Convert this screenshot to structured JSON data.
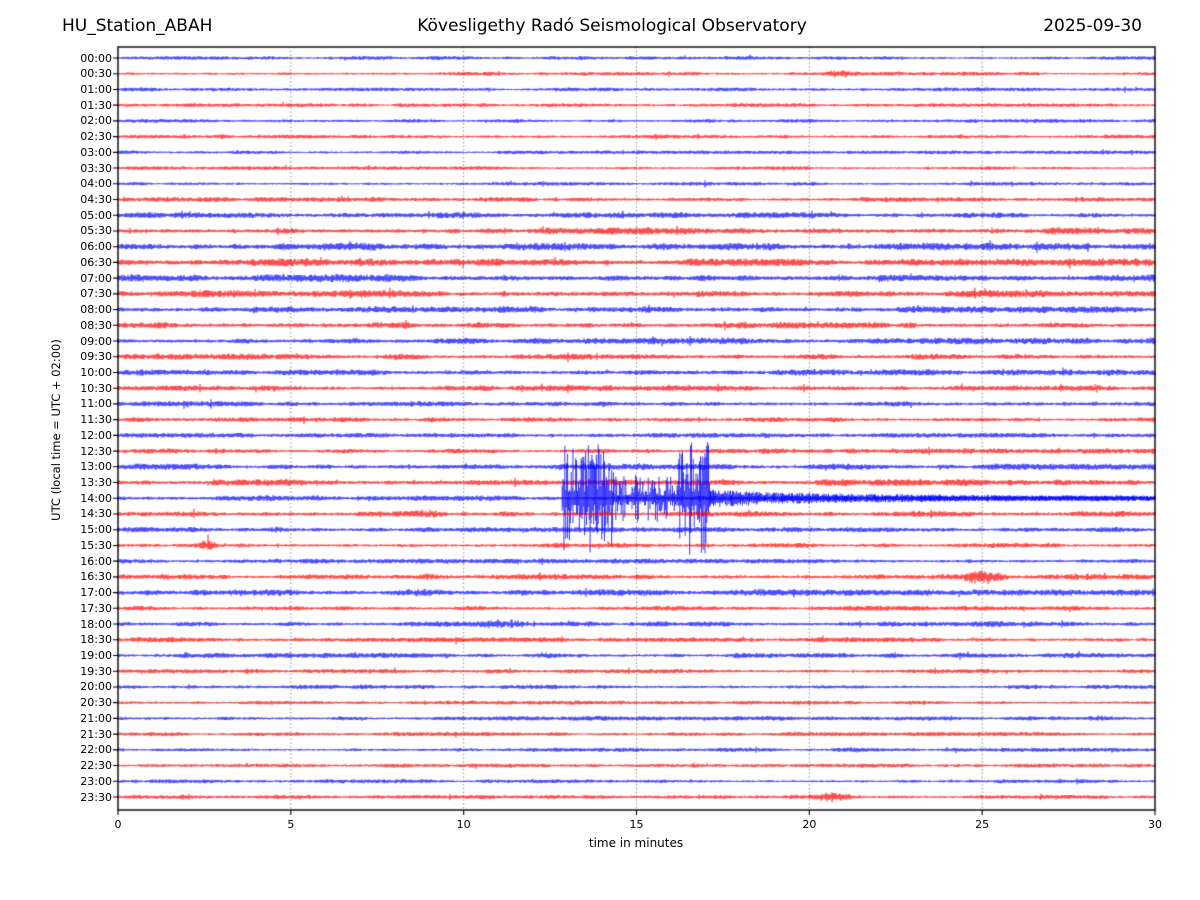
{
  "colors": {
    "background": "#ffffff",
    "trace_blue": "#0000ff",
    "trace_red": "#ff0000",
    "grid": "#3a3a3a",
    "axis": "#000000",
    "text": "#000000"
  },
  "chart_data": {
    "type": "line",
    "subtype": "helicorder-day-plot",
    "title_left": "HU_Station_ABAH",
    "title_center": "Kövesligethy Radó Seismological Observatory",
    "title_right": "2025-09-30",
    "xlabel": "time in minutes",
    "ylabel": "UTC (local time = UTC + 02:00)",
    "x_range": [
      0,
      30
    ],
    "x_ticks": [
      0,
      5,
      10,
      15,
      20,
      25,
      30
    ],
    "grid_minutes": [
      5,
      10,
      15,
      20,
      25
    ],
    "minutes_per_row": 30,
    "grid": "vertical-dotted",
    "event": {
      "row": "14:00",
      "start_minute": 12.85,
      "strong_until_minute": 17.15,
      "coda_until_minute": 30,
      "clipped": true
    },
    "rows": [
      {
        "label": "00:00",
        "color": "blue",
        "amp": 1.5,
        "bursts": []
      },
      {
        "label": "00:30",
        "color": "red",
        "amp": 1.5,
        "bursts": [
          [
            20.2,
            21.5,
            3.5
          ]
        ]
      },
      {
        "label": "01:00",
        "color": "blue",
        "amp": 1.5,
        "bursts": []
      },
      {
        "label": "01:30",
        "color": "red",
        "amp": 1.5,
        "bursts": []
      },
      {
        "label": "02:00",
        "color": "blue",
        "amp": 1.5,
        "bursts": []
      },
      {
        "label": "02:30",
        "color": "red",
        "amp": 1.6,
        "bursts": []
      },
      {
        "label": "03:00",
        "color": "blue",
        "amp": 1.4,
        "bursts": []
      },
      {
        "label": "03:30",
        "color": "red",
        "amp": 1.5,
        "bursts": []
      },
      {
        "label": "04:00",
        "color": "blue",
        "amp": 1.5,
        "bursts": []
      },
      {
        "label": "04:30",
        "color": "red",
        "amp": 1.9,
        "bursts": []
      },
      {
        "label": "05:00",
        "color": "blue",
        "amp": 2.3,
        "bursts": [
          [
            0.5,
            1.5,
            3.2
          ],
          [
            9.5,
            10.5,
            3.2
          ]
        ]
      },
      {
        "label": "05:30",
        "color": "red",
        "amp": 2.8,
        "bursts": []
      },
      {
        "label": "06:00",
        "color": "blue",
        "amp": 3.0,
        "bursts": []
      },
      {
        "label": "06:30",
        "color": "red",
        "amp": 3.0,
        "bursts": []
      },
      {
        "label": "07:00",
        "color": "blue",
        "amp": 3.0,
        "bursts": [
          [
            0,
            1,
            3.8
          ]
        ]
      },
      {
        "label": "07:30",
        "color": "red",
        "amp": 2.8,
        "bursts": []
      },
      {
        "label": "08:00",
        "color": "blue",
        "amp": 2.7,
        "bursts": []
      },
      {
        "label": "08:30",
        "color": "red",
        "amp": 2.6,
        "bursts": [
          [
            20.5,
            21.2,
            3.4
          ],
          [
            22.5,
            23.2,
            3.4
          ]
        ]
      },
      {
        "label": "09:00",
        "color": "blue",
        "amp": 2.6,
        "bursts": []
      },
      {
        "label": "09:30",
        "color": "red",
        "amp": 2.4,
        "bursts": []
      },
      {
        "label": "10:00",
        "color": "blue",
        "amp": 2.5,
        "bursts": [
          [
            0,
            1.5,
            3.4
          ]
        ]
      },
      {
        "label": "10:30",
        "color": "red",
        "amp": 2.2,
        "bursts": []
      },
      {
        "label": "11:00",
        "color": "blue",
        "amp": 2.2,
        "bursts": []
      },
      {
        "label": "11:30",
        "color": "red",
        "amp": 2.0,
        "bursts": []
      },
      {
        "label": "12:00",
        "color": "blue",
        "amp": 2.0,
        "bursts": []
      },
      {
        "label": "12:30",
        "color": "red",
        "amp": 2.0,
        "bursts": [
          [
            24.3,
            24.9,
            3.2
          ]
        ]
      },
      {
        "label": "13:00",
        "color": "blue",
        "amp": 2.4,
        "bursts": []
      },
      {
        "label": "13:30",
        "color": "red",
        "amp": 2.7,
        "bursts": []
      },
      {
        "label": "14:00",
        "color": "blue",
        "amp": 2.3,
        "bursts": [],
        "event_phases": [
          [
            12.85,
            14.35,
            55,
            1
          ],
          [
            14.35,
            16.2,
            24,
            1
          ],
          [
            16.2,
            17.15,
            58,
            1
          ],
          [
            17.15,
            18.6,
            9,
            0
          ],
          [
            18.6,
            21.5,
            6,
            0
          ],
          [
            21.5,
            25,
            4.5,
            0
          ],
          [
            25,
            30,
            3.2,
            0
          ]
        ]
      },
      {
        "label": "14:30",
        "color": "red",
        "amp": 2.3,
        "bursts": [
          [
            8.2,
            9.6,
            4.5
          ]
        ]
      },
      {
        "label": "15:00",
        "color": "blue",
        "amp": 2.1,
        "bursts": [
          [
            4,
            5.2,
            3.0
          ]
        ]
      },
      {
        "label": "15:30",
        "color": "red",
        "amp": 2.0,
        "bursts": [
          [
            2.2,
            2.9,
            5.5
          ]
        ]
      },
      {
        "label": "16:00",
        "color": "blue",
        "amp": 1.9,
        "bursts": []
      },
      {
        "label": "16:30",
        "color": "red",
        "amp": 2.1,
        "bursts": [
          [
            24.3,
            25.8,
            7.0
          ],
          [
            25.8,
            30,
            3.0
          ]
        ]
      },
      {
        "label": "17:00",
        "color": "blue",
        "amp": 2.4,
        "bursts": [
          [
            3,
            4.2,
            3.6
          ],
          [
            7.5,
            10,
            3.6
          ],
          [
            16.5,
            21,
            3.3
          ]
        ]
      },
      {
        "label": "17:30",
        "color": "red",
        "amp": 1.9,
        "bursts": []
      },
      {
        "label": "18:00",
        "color": "blue",
        "amp": 2.1,
        "bursts": [
          [
            10.2,
            12,
            4.8
          ],
          [
            14.8,
            16.2,
            3.0
          ],
          [
            24.8,
            26,
            3.0
          ]
        ]
      },
      {
        "label": "18:30",
        "color": "red",
        "amp": 2.0,
        "bursts": [
          [
            0.3,
            0.9,
            3.2
          ]
        ]
      },
      {
        "label": "19:00",
        "color": "blue",
        "amp": 2.0,
        "bursts": [
          [
            1.6,
            2.3,
            3.2
          ],
          [
            6.6,
            7.3,
            3.2
          ],
          [
            11.8,
            13,
            3.2
          ],
          [
            17.6,
            18.5,
            3.2
          ]
        ]
      },
      {
        "label": "19:30",
        "color": "red",
        "amp": 1.7,
        "bursts": []
      },
      {
        "label": "20:00",
        "color": "blue",
        "amp": 1.8,
        "bursts": []
      },
      {
        "label": "20:30",
        "color": "red",
        "amp": 1.6,
        "bursts": []
      },
      {
        "label": "21:00",
        "color": "blue",
        "amp": 1.8,
        "bursts": [
          [
            27.8,
            29,
            2.8
          ]
        ]
      },
      {
        "label": "21:30",
        "color": "red",
        "amp": 1.6,
        "bursts": []
      },
      {
        "label": "22:00",
        "color": "blue",
        "amp": 1.6,
        "bursts": []
      },
      {
        "label": "22:30",
        "color": "red",
        "amp": 1.5,
        "bursts": []
      },
      {
        "label": "23:00",
        "color": "blue",
        "amp": 1.6,
        "bursts": []
      },
      {
        "label": "23:30",
        "color": "red",
        "amp": 1.6,
        "bursts": [
          [
            19.8,
            21.4,
            4.8
          ]
        ]
      }
    ]
  }
}
